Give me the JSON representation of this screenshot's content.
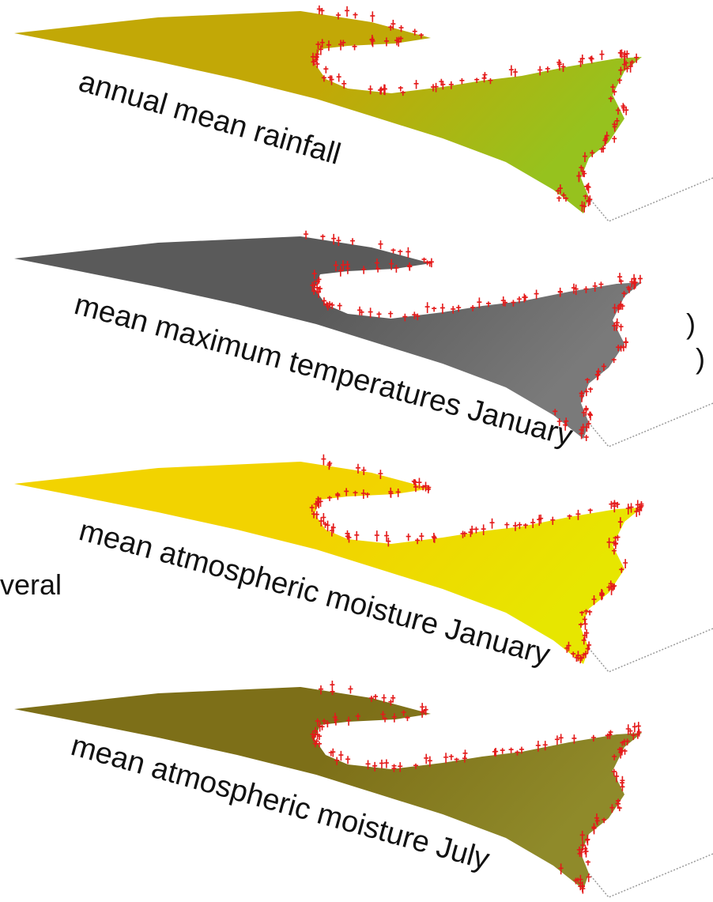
{
  "edge_fragments": {
    "frag_1": ")",
    "frag_2": ")",
    "frag_3": "veral"
  },
  "layers": [
    {
      "label": "annual mean rainfall",
      "base_color": "#c2a806",
      "tint_color": "#96c21e",
      "speckle_color": "#e41a1a"
    },
    {
      "label": "mean maximum temperatures January",
      "base_color": "#5a5a5a",
      "tint_color": "#7a7a7a",
      "speckle_color": "#e41a1a"
    },
    {
      "label": "mean atmospheric moisture  January",
      "base_color": "#f2d300",
      "tint_color": "#e7e600",
      "speckle_color": "#e41a1a"
    },
    {
      "label": "mean atmospheric moisture July",
      "base_color": "#7d6f18",
      "tint_color": "#8f8a2a",
      "speckle_color": "#e41a1a"
    }
  ]
}
